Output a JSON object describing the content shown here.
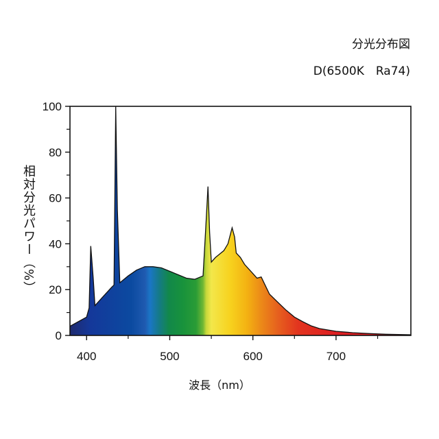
{
  "title": "分光分布図",
  "subtitle": "D(6500K　Ra74)",
  "chart_data": {
    "type": "area",
    "xlabel": "波長（nm）",
    "ylabel": "相対分光パワー（%）",
    "xlim": [
      380,
      790
    ],
    "ylim": [
      0,
      100
    ],
    "xticks": [
      400,
      500,
      600,
      700
    ],
    "yticks": [
      0,
      20,
      40,
      60,
      80,
      100
    ],
    "grid": false,
    "legend": "none",
    "series": [
      {
        "x": [
          380,
          390,
          400,
          403,
          405,
          408,
          410,
          420,
          430,
          433,
          435,
          437,
          440,
          450,
          460,
          470,
          480,
          490,
          500,
          510,
          520,
          530,
          540,
          543,
          546,
          548,
          550,
          555,
          560,
          565,
          570,
          575,
          578,
          580,
          585,
          590,
          600,
          605,
          610,
          620,
          630,
          640,
          650,
          660,
          670,
          680,
          700,
          720,
          740,
          760,
          790
        ],
        "y": [
          4,
          6,
          8,
          12,
          39,
          25,
          13,
          17,
          21,
          22,
          100,
          55,
          23,
          26,
          28.5,
          30,
          30,
          29.5,
          28,
          26.5,
          25,
          24.5,
          26,
          45,
          65,
          45,
          32,
          34,
          35.5,
          37,
          40,
          47,
          43,
          36,
          34,
          31,
          27,
          25,
          25.5,
          18,
          14.5,
          11,
          8,
          6,
          4.2,
          3,
          1.8,
          1.2,
          0.8,
          0.5,
          0.3
        ]
      }
    ]
  }
}
